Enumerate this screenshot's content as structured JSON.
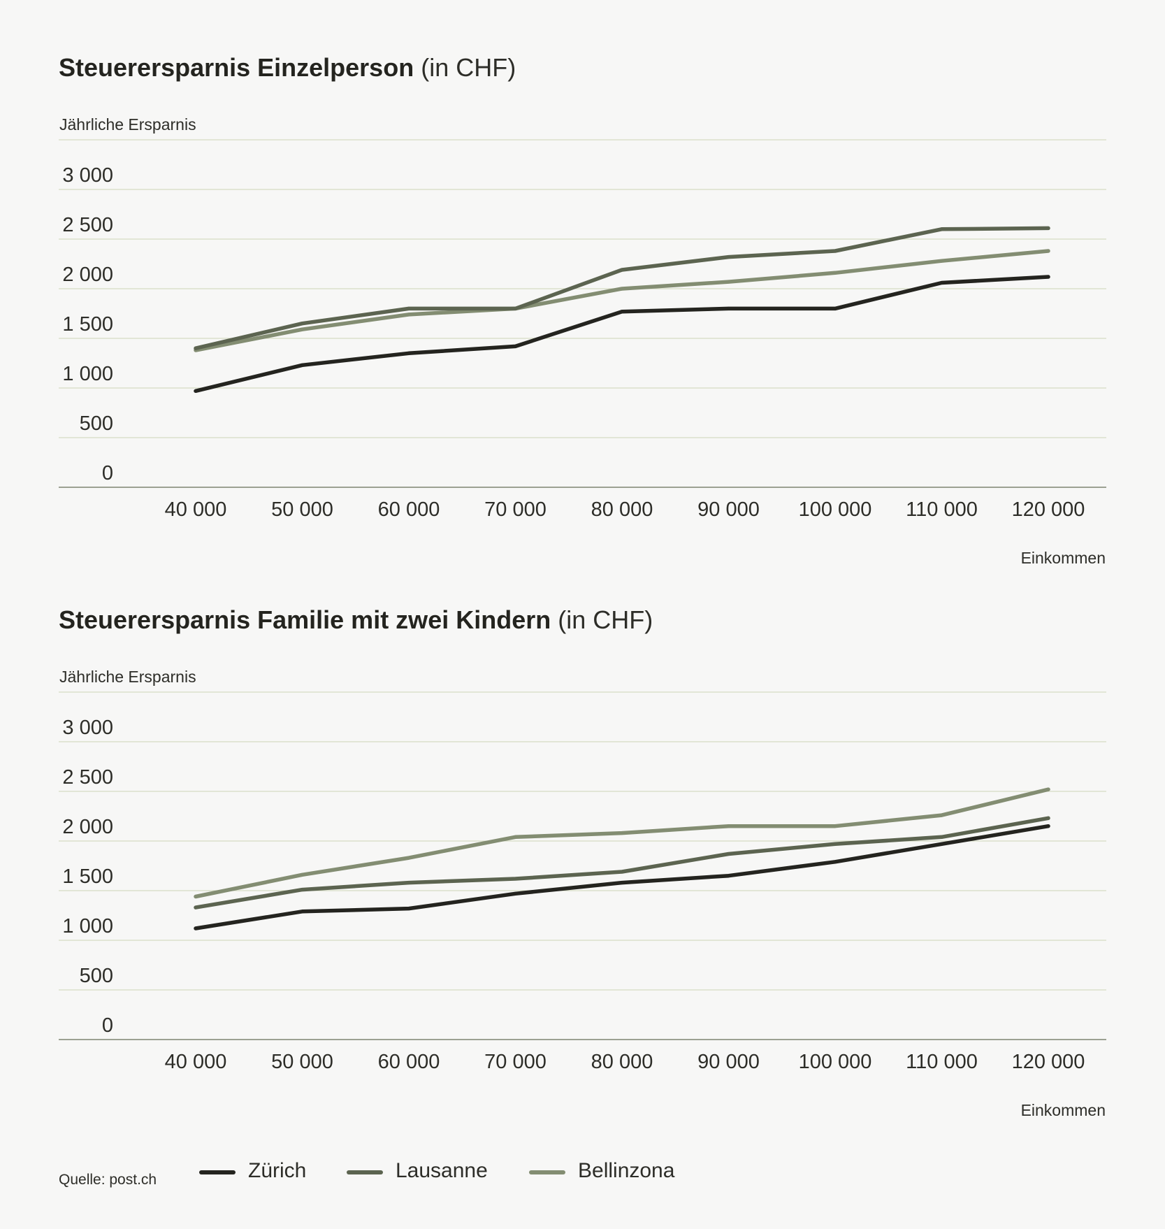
{
  "chart_data": [
    {
      "type": "line",
      "title": "Steuerersparnis Einzelperson",
      "title_unit": "(in CHF)",
      "ylabel": "Jährliche Ersparnis",
      "xlabel": "Einkommen",
      "x": [
        40000,
        50000,
        60000,
        70000,
        80000,
        90000,
        100000,
        110000,
        120000
      ],
      "x_tick_labels": [
        "40 000",
        "50 000",
        "60 000",
        "70 000",
        "80 000",
        "90 000",
        "100 000",
        "110 000",
        "120 000"
      ],
      "ylim": [
        0,
        3500
      ],
      "y_ticks": [
        0,
        500,
        1000,
        1500,
        2000,
        2500,
        3000
      ],
      "y_tick_labels": [
        "0",
        "500",
        "1 000",
        "1 500",
        "2 000",
        "2 500",
        "3 000"
      ],
      "grid": true,
      "series": [
        {
          "name": "Zürich",
          "color": "#24241f",
          "values": [
            970,
            1230,
            1350,
            1420,
            1770,
            1800,
            1800,
            2060,
            2120
          ]
        },
        {
          "name": "Lausanne",
          "color": "#5c6450",
          "values": [
            1400,
            1650,
            1800,
            1800,
            2190,
            2320,
            2380,
            2600,
            2610
          ]
        },
        {
          "name": "Bellinzona",
          "color": "#838d72",
          "values": [
            1380,
            1590,
            1740,
            1800,
            2000,
            2070,
            2160,
            2280,
            2380
          ]
        }
      ]
    },
    {
      "type": "line",
      "title": "Steuerersparnis Familie mit zwei Kindern",
      "title_unit": "(in CHF)",
      "ylabel": "Jährliche Ersparnis",
      "xlabel": "Einkommen",
      "x": [
        40000,
        50000,
        60000,
        70000,
        80000,
        90000,
        100000,
        110000,
        120000
      ],
      "x_tick_labels": [
        "40 000",
        "50 000",
        "60 000",
        "70 000",
        "80 000",
        "90 000",
        "100 000",
        "110 000",
        "120 000"
      ],
      "ylim": [
        0,
        3500
      ],
      "y_ticks": [
        0,
        500,
        1000,
        1500,
        2000,
        2500,
        3000
      ],
      "y_tick_labels": [
        "0",
        "500",
        "1 000",
        "1 500",
        "2 000",
        "2 500",
        "3 000"
      ],
      "grid": true,
      "series": [
        {
          "name": "Zürich",
          "color": "#24241f",
          "values": [
            1120,
            1290,
            1320,
            1470,
            1580,
            1650,
            1790,
            1970,
            2150
          ]
        },
        {
          "name": "Lausanne",
          "color": "#5c6450",
          "values": [
            1330,
            1510,
            1580,
            1620,
            1690,
            1870,
            1970,
            2040,
            2230
          ]
        },
        {
          "name": "Bellinzona",
          "color": "#838d72",
          "values": [
            1440,
            1660,
            1830,
            2040,
            2080,
            2150,
            2150,
            2260,
            2520
          ]
        }
      ]
    }
  ],
  "footer": {
    "source": "Quelle: post.ch",
    "legend": [
      {
        "label": "Zürich",
        "color": "#24241f"
      },
      {
        "label": "Lausanne",
        "color": "#5c6450"
      },
      {
        "label": "Bellinzona",
        "color": "#838d72"
      }
    ]
  }
}
